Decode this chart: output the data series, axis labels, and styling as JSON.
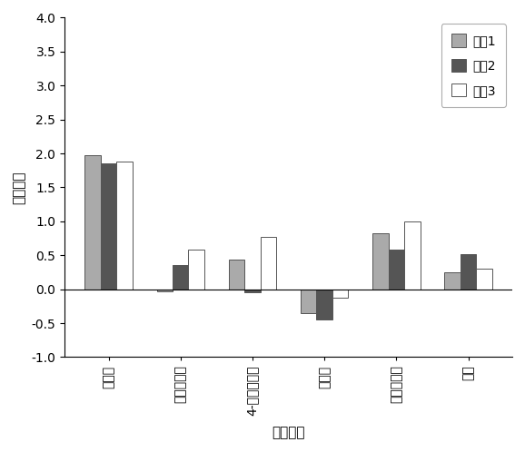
{
  "categories": [
    "脱落酸",
    "细胞分裂素",
    "4-氯苯氧乙酸",
    "赤霞素",
    "磷酸二氢钒",
    "硷砂"
  ],
  "series": [
    {
      "label": "浓度1",
      "color": "#aaaaaa",
      "values": [
        1.97,
        -0.03,
        0.44,
        -0.35,
        0.83,
        0.25
      ]
    },
    {
      "label": "浓度2",
      "color": "#555555",
      "values": [
        1.85,
        0.35,
        -0.05,
        -0.45,
        0.58,
        0.52
      ]
    },
    {
      "label": "浓度3",
      "color": "#ffffff",
      "values": [
        1.88,
        0.58,
        0.77,
        -0.12,
        1.0,
        0.3
      ]
    }
  ],
  "ylabel": "平均增益",
  "xlabel": "外源物质",
  "ylim": [
    -1,
    4
  ],
  "yticks": [
    -1,
    -0.5,
    0,
    0.5,
    1,
    1.5,
    2,
    2.5,
    3,
    3.5,
    4
  ],
  "bar_width": 0.22,
  "edge_color": "#555555",
  "background_color": "#ffffff",
  "legend_edgecolor": "#999999"
}
